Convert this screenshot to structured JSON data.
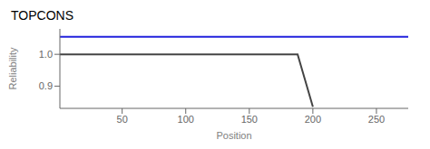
{
  "chart_data": {
    "type": "line",
    "title": "TOPCONS",
    "x_label": "Position",
    "y_label": "Reliability",
    "x": [
      1,
      188,
      200,
      275
    ],
    "series": [
      {
        "color": "#2222dd",
        "values": [
          1.055,
          1.055,
          1.055,
          1.055
        ]
      },
      {
        "color": "#444444",
        "values": [
          1,
          1,
          0.835,
          null
        ]
      }
    ],
    "xlim": [
      1,
      275
    ],
    "ylim": [
      0.83,
      1.08
    ],
    "xticks": [
      50,
      100,
      150,
      200,
      250
    ],
    "yticks": [
      0.9,
      {
        "value": 1,
        "label": "1.0"
      }
    ],
    "grid": false
  }
}
